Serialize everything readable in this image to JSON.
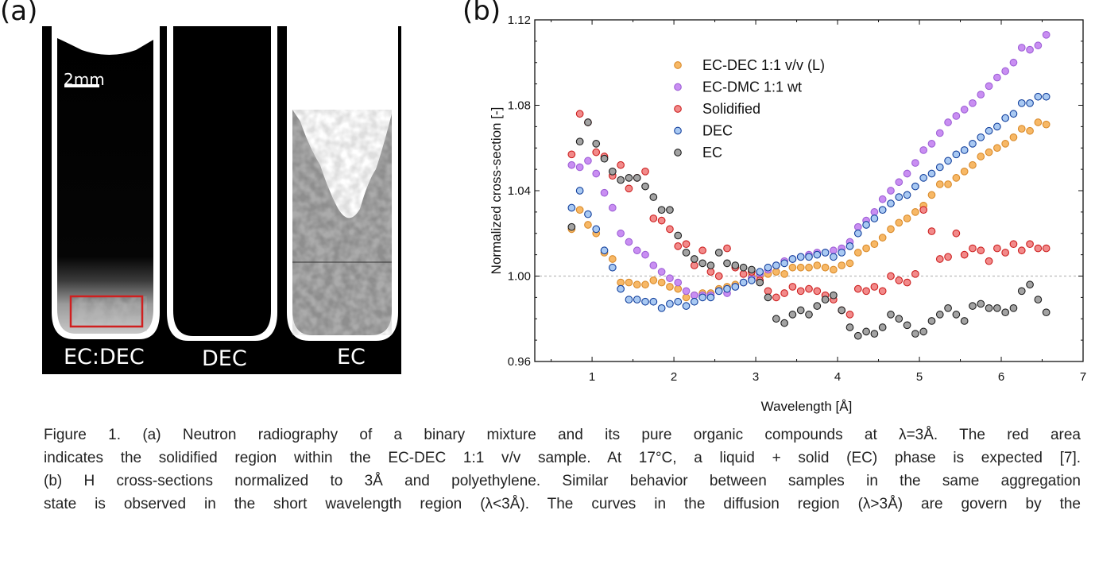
{
  "panel_a": {
    "label": "(a)",
    "scale_bar": "2mm",
    "vials": [
      "EC:DEC",
      "DEC",
      "EC"
    ],
    "highlight_color": "#d01f1f"
  },
  "panel_b": {
    "label": "(b)"
  },
  "chart_data": {
    "type": "scatter",
    "xlabel": "Wavelength [Å]",
    "ylabel": "Normalized cross-section [-]",
    "xlim": [
      0.3,
      7
    ],
    "ylim": [
      0.96,
      1.12
    ],
    "xticks": [
      "1",
      "2",
      "3",
      "4",
      "5",
      "6",
      "7"
    ],
    "yticks": [
      "0.96",
      "1.00",
      "1.04",
      "1.08",
      "1.12"
    ],
    "reference_line": 1.0,
    "grid": false,
    "legend_placement": "top-left-center",
    "x": [
      0.75,
      0.85,
      0.95,
      1.05,
      1.15,
      1.25,
      1.35,
      1.45,
      1.55,
      1.65,
      1.75,
      1.85,
      1.95,
      2.05,
      2.15,
      2.25,
      2.35,
      2.45,
      2.55,
      2.65,
      2.75,
      2.85,
      2.95,
      3.05,
      3.15,
      3.25,
      3.35,
      3.45,
      3.55,
      3.65,
      3.75,
      3.85,
      3.95,
      4.05,
      4.15,
      4.25,
      4.35,
      4.45,
      4.55,
      4.65,
      4.75,
      4.85,
      4.95,
      5.05,
      5.15,
      5.25,
      5.35,
      5.45,
      5.55,
      5.65,
      5.75,
      5.85,
      5.95,
      6.05,
      6.15,
      6.25,
      6.35,
      6.45,
      6.55
    ],
    "series": [
      {
        "name": "EC-DEC 1:1 v/v (L)",
        "fill": "#f7b866",
        "stroke": "#d98a2a",
        "values": [
          1.022,
          1.031,
          1.024,
          1.02,
          1.011,
          1.008,
          0.997,
          0.997,
          0.996,
          0.996,
          0.998,
          0.997,
          0.995,
          0.994,
          0.99,
          0.991,
          0.992,
          0.992,
          0.994,
          0.995,
          0.996,
          0.997,
          1.0,
          1.0,
          1.001,
          1.002,
          1.001,
          1.004,
          1.004,
          1.004,
          1.005,
          1.004,
          1.003,
          1.005,
          1.006,
          1.011,
          1.013,
          1.015,
          1.018,
          1.022,
          1.025,
          1.027,
          1.03,
          1.033,
          1.038,
          1.043,
          1.043,
          1.046,
          1.049,
          1.052,
          1.056,
          1.058,
          1.06,
          1.062,
          1.065,
          1.069,
          1.068,
          1.072,
          1.071
        ]
      },
      {
        "name": "EC-DMC 1:1 wt",
        "fill": "#c98ef2",
        "stroke": "#9d5fd6",
        "values": [
          1.052,
          1.051,
          1.054,
          1.048,
          1.039,
          1.032,
          1.02,
          1.016,
          1.012,
          1.01,
          1.005,
          1.002,
          0.999,
          0.997,
          0.993,
          0.991,
          0.991,
          0.991,
          0.993,
          0.992,
          0.995,
          0.997,
          0.999,
          1.001,
          1.003,
          1.005,
          1.007,
          1.008,
          1.009,
          1.01,
          1.011,
          1.011,
          1.012,
          1.013,
          1.016,
          1.023,
          1.026,
          1.03,
          1.036,
          1.04,
          1.044,
          1.048,
          1.053,
          1.059,
          1.062,
          1.067,
          1.072,
          1.075,
          1.078,
          1.081,
          1.085,
          1.089,
          1.093,
          1.096,
          1.1,
          1.107,
          1.106,
          1.108,
          1.113
        ]
      },
      {
        "name": "Solidified",
        "fill": "#f28a8a",
        "stroke": "#cc1f1f",
        "values": [
          1.057,
          1.076,
          1.072,
          1.058,
          1.056,
          1.047,
          1.052,
          1.041,
          1.046,
          1.049,
          1.027,
          1.026,
          1.022,
          1.014,
          1.015,
          1.005,
          1.012,
          1.002,
          1.0,
          1.013,
          1.004,
          1.001,
          1.002,
          0.998,
          0.993,
          0.99,
          0.992,
          0.995,
          0.993,
          0.994,
          0.993,
          0.991,
          0.989,
          0.984,
          0.982,
          0.994,
          0.993,
          0.995,
          0.993,
          1.0,
          0.998,
          0.997,
          1.001,
          1.031,
          1.021,
          1.008,
          1.009,
          1.02,
          1.01,
          1.013,
          1.012,
          1.007,
          1.013,
          1.011,
          1.015,
          1.012,
          1.015,
          1.013,
          1.013
        ]
      },
      {
        "name": "DEC",
        "fill": "#a9c9f2",
        "stroke": "#123f9c",
        "values": [
          1.032,
          1.04,
          1.029,
          1.022,
          1.012,
          1.004,
          0.994,
          0.989,
          0.989,
          0.988,
          0.988,
          0.985,
          0.987,
          0.988,
          0.986,
          0.988,
          0.99,
          0.99,
          0.993,
          0.994,
          0.995,
          0.997,
          0.998,
          1.002,
          1.004,
          1.005,
          1.006,
          1.008,
          1.009,
          1.009,
          1.01,
          1.011,
          1.009,
          1.011,
          1.014,
          1.02,
          1.024,
          1.027,
          1.031,
          1.034,
          1.037,
          1.038,
          1.042,
          1.046,
          1.048,
          1.051,
          1.054,
          1.057,
          1.059,
          1.062,
          1.065,
          1.068,
          1.07,
          1.074,
          1.076,
          1.081,
          1.081,
          1.084,
          1.084
        ]
      },
      {
        "name": "EC",
        "fill": "#a3a3a3",
        "stroke": "#1e1e1e",
        "values": [
          1.023,
          1.063,
          1.072,
          1.062,
          1.055,
          1.049,
          1.045,
          1.046,
          1.046,
          1.042,
          1.037,
          1.031,
          1.031,
          1.019,
          1.011,
          1.008,
          1.006,
          1.005,
          1.011,
          1.006,
          1.005,
          1.004,
          1.003,
          0.997,
          0.99,
          0.98,
          0.978,
          0.982,
          0.984,
          0.982,
          0.986,
          0.989,
          0.991,
          0.984,
          0.976,
          0.972,
          0.974,
          0.973,
          0.976,
          0.982,
          0.98,
          0.977,
          0.973,
          0.974,
          0.979,
          0.982,
          0.985,
          0.982,
          0.979,
          0.986,
          0.987,
          0.985,
          0.985,
          0.983,
          0.985,
          0.993,
          0.996,
          0.989,
          0.983
        ]
      }
    ]
  },
  "caption": {
    "lines": [
      "Figure 1. (a) Neutron radiography of a binary mixture and its pure organic compounds at λ=3Å. The red area",
      "indicates the solidified region within the EC-DEC 1:1 v/v sample. At 17°C, a liquid + solid (EC) phase is expected [7].",
      "(b) H cross-sections normalized to 3Å and polyethylene. Similar behavior between samples in the same aggregation",
      "state is observed in the short wavelength region (λ<3Å). The curves in the diffusion region (λ>3Å) are govern by the"
    ]
  }
}
